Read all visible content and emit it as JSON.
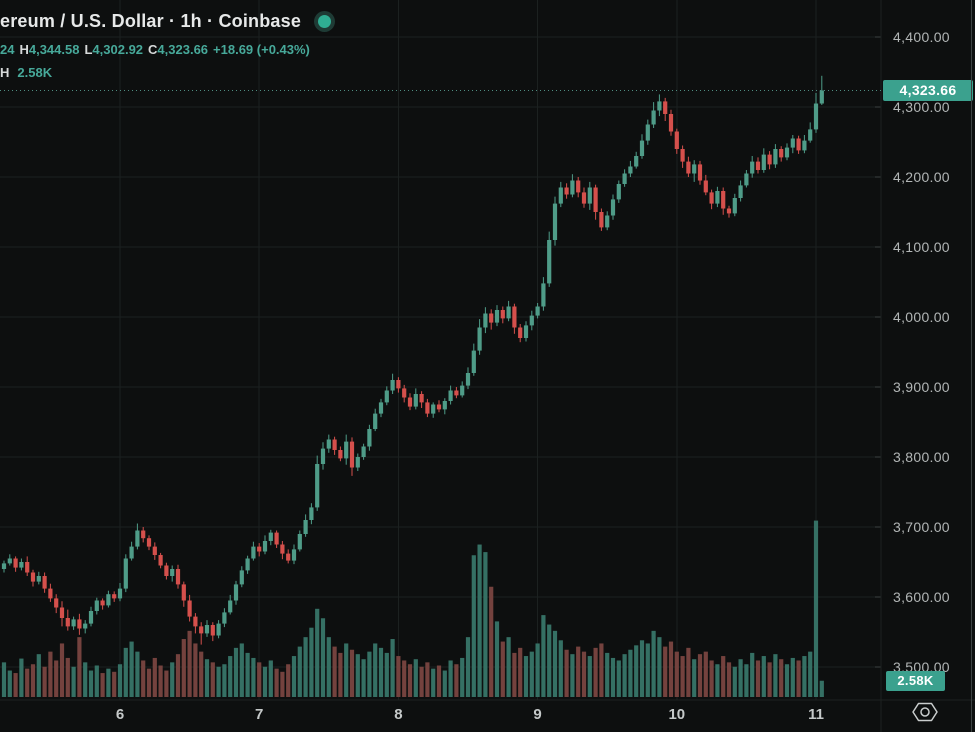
{
  "colors": {
    "background": "#0d0f0f",
    "grid": "#1c2120",
    "candle_up": "#4f9c88",
    "candle_down": "#d5504c",
    "volume_up": "#357064",
    "volume_down": "#74423e",
    "badge_teal": "#3ba18e",
    "dotted_price_line": "#4f8d82",
    "axis_text": "#b2b6b6",
    "legend_teal": "#47a99a",
    "tick": "#3a4040",
    "pane_separator": "#1d2221"
  },
  "header": {
    "symbol_title": "ereum / U.S. Dollar · 1h · Coinbase",
    "ohlc": {
      "open_fragment": "24",
      "high_label": "H",
      "high_value": "4,344.58",
      "low_label": "L",
      "low_value": "4,302.92",
      "close_label": "C",
      "close_value": "4,323.66",
      "change_value": "+18.69 (+0.43%)"
    },
    "volume_row": {
      "label_fragment": "H",
      "value": "2.58K"
    }
  },
  "price_axis": {
    "labels": [
      "4,400.00",
      "4,300.00",
      "4,200.00",
      "4,100.00",
      "4,000.00",
      "3,900.00",
      "3,800.00",
      "3,700.00",
      "3,600.00",
      "3,500.00"
    ],
    "last_price_badge": "4,323.66",
    "volume_badge": "2.58K"
  },
  "time_axis": {
    "labels": [
      {
        "text": "6",
        "candle_index": 20
      },
      {
        "text": "7",
        "candle_index": 44
      },
      {
        "text": "8",
        "candle_index": 68
      },
      {
        "text": "9",
        "candle_index": 92
      },
      {
        "text": "10",
        "candle_index": 116
      },
      {
        "text": "11",
        "candle_index": 140
      }
    ]
  },
  "chart_data": {
    "type": "candlestick_with_volume",
    "title": "Ethereum / U.S. Dollar",
    "interval": "1h",
    "exchange": "Coinbase",
    "ylim": [
      3452.9,
      4452.9
    ],
    "price_gridline_step": 100,
    "grid": true,
    "last_price": 4323.66,
    "last_volume_k": 2.58,
    "legend_last_candle": {
      "high": 4344.58,
      "low": 4302.92,
      "close": 4323.66,
      "change_abs": 18.69,
      "change_pct": 0.43
    },
    "open_policy": "each candle opens at the previous candle close",
    "first_open": 3640,
    "closes": [
      3648,
      3655,
      3642,
      3650,
      3635,
      3622,
      3630,
      3612,
      3598,
      3585,
      3570,
      3558,
      3568,
      3555,
      3562,
      3580,
      3595,
      3588,
      3604,
      3598,
      3612,
      3655,
      3672,
      3695,
      3684,
      3672,
      3660,
      3645,
      3630,
      3640,
      3618,
      3595,
      3572,
      3558,
      3548,
      3560,
      3545,
      3562,
      3578,
      3595,
      3618,
      3638,
      3655,
      3672,
      3665,
      3680,
      3692,
      3675,
      3662,
      3652,
      3668,
      3690,
      3710,
      3728,
      3790,
      3812,
      3825,
      3810,
      3798,
      3822,
      3785,
      3800,
      3815,
      3840,
      3862,
      3878,
      3895,
      3910,
      3898,
      3885,
      3872,
      3890,
      3878,
      3862,
      3875,
      3868,
      3880,
      3895,
      3888,
      3902,
      3920,
      3952,
      3985,
      4005,
      3992,
      4010,
      3998,
      4015,
      3985,
      3970,
      3988,
      4002,
      4015,
      4048,
      4110,
      4162,
      4185,
      4175,
      4195,
      4178,
      4162,
      4185,
      4150,
      4128,
      4145,
      4168,
      4190,
      4205,
      4215,
      4230,
      4252,
      4275,
      4295,
      4308,
      4290,
      4265,
      4240,
      4222,
      4205,
      4218,
      4195,
      4178,
      4162,
      4180,
      4155,
      4148,
      4170,
      4188,
      4205,
      4222,
      4210,
      4232,
      4218,
      4240,
      4228,
      4242,
      4255,
      4238,
      4252,
      4268,
      4304.97,
      4323.66
    ],
    "wick_above": [
      4,
      6,
      3,
      5,
      8,
      4,
      6,
      5,
      7,
      6,
      9,
      12,
      4,
      8,
      5,
      6,
      4,
      3,
      5,
      4,
      8,
      6,
      7,
      10,
      5,
      4,
      6,
      3,
      4,
      5,
      6,
      4,
      8,
      5,
      6,
      7,
      4,
      5,
      6,
      8,
      5,
      6,
      4,
      7,
      5,
      8,
      4,
      3,
      5,
      6,
      7,
      5,
      8,
      6,
      12,
      9,
      7,
      4,
      5,
      10,
      6,
      5,
      4,
      6,
      7,
      5,
      6,
      9,
      4,
      5,
      6,
      8,
      4,
      5,
      3,
      6,
      4,
      7,
      5,
      6,
      8,
      10,
      12,
      9,
      6,
      7,
      5,
      8,
      4,
      5,
      6,
      7,
      5,
      9,
      12,
      10,
      8,
      6,
      9,
      5,
      7,
      8,
      4,
      5,
      6,
      7,
      5,
      6,
      8,
      6,
      9,
      7,
      12,
      10,
      5,
      6,
      4,
      5,
      7,
      6,
      5,
      8,
      4,
      6,
      5,
      4,
      6,
      7,
      5,
      8,
      6,
      9,
      5,
      7,
      4,
      6,
      5,
      4,
      8,
      10,
      15,
      20.92
    ],
    "wick_below": [
      5,
      3,
      6,
      4,
      5,
      7,
      4,
      6,
      5,
      8,
      12,
      6,
      5,
      9,
      7,
      4,
      5,
      6,
      3,
      5,
      4,
      5,
      3,
      4,
      6,
      5,
      7,
      4,
      5,
      8,
      6,
      9,
      7,
      10,
      16,
      5,
      8,
      4,
      5,
      3,
      6,
      4,
      5,
      3,
      7,
      4,
      6,
      5,
      8,
      4,
      5,
      3,
      4,
      6,
      5,
      8,
      6,
      7,
      4,
      9,
      12,
      5,
      4,
      6,
      3,
      5,
      4,
      5,
      6,
      7,
      5,
      4,
      8,
      5,
      6,
      4,
      7,
      5,
      4,
      3,
      5,
      4,
      6,
      8,
      10,
      5,
      7,
      4,
      9,
      6,
      5,
      7,
      4,
      6,
      5,
      8,
      5,
      6,
      4,
      7,
      6,
      9,
      11,
      5,
      4,
      6,
      5,
      4,
      5,
      3,
      4,
      6,
      5,
      8,
      10,
      6,
      7,
      9,
      5,
      12,
      6,
      4,
      8,
      5,
      9,
      6,
      4,
      5,
      3,
      6,
      5,
      4,
      7,
      5,
      6,
      4,
      8,
      5,
      4,
      3,
      5,
      2.05
    ],
    "volumes_k": [
      5.5,
      4.2,
      3.8,
      6.1,
      4.5,
      5.2,
      6.8,
      4.8,
      7.2,
      5.8,
      8.5,
      6.2,
      4.8,
      9.5,
      5.5,
      4.2,
      5.0,
      3.8,
      4.5,
      4.0,
      5.2,
      7.8,
      8.8,
      7.2,
      5.8,
      4.5,
      6.2,
      5.0,
      4.2,
      5.5,
      6.8,
      9.2,
      10.5,
      8.5,
      7.2,
      6.0,
      5.5,
      4.8,
      5.2,
      6.5,
      7.8,
      8.5,
      7.0,
      6.2,
      5.5,
      4.8,
      5.8,
      4.5,
      4.0,
      5.2,
      6.5,
      8.0,
      9.5,
      11.0,
      14.0,
      12.5,
      9.5,
      8.0,
      7.0,
      8.5,
      7.5,
      6.8,
      6.0,
      7.2,
      8.5,
      7.8,
      7.0,
      9.2,
      6.5,
      5.8,
      5.2,
      6.0,
      4.8,
      5.5,
      4.5,
      5.0,
      4.2,
      5.8,
      5.2,
      6.2,
      9.5,
      22.5,
      24.2,
      23.0,
      17.5,
      12.0,
      8.8,
      9.5,
      7.0,
      7.8,
      6.5,
      7.2,
      8.5,
      13.0,
      11.5,
      10.5,
      9.0,
      7.5,
      6.8,
      8.0,
      7.2,
      6.5,
      7.8,
      8.5,
      7.0,
      6.2,
      5.8,
      6.8,
      7.5,
      8.2,
      9.0,
      8.5,
      10.5,
      9.5,
      8.0,
      8.8,
      7.2,
      6.5,
      7.8,
      6.0,
      6.8,
      7.2,
      5.8,
      5.2,
      6.5,
      5.5,
      4.8,
      6.0,
      5.2,
      7.0,
      5.8,
      6.5,
      5.5,
      6.8,
      6.0,
      5.2,
      6.2,
      5.8,
      6.5,
      7.2,
      28.0,
      2.58
    ]
  }
}
